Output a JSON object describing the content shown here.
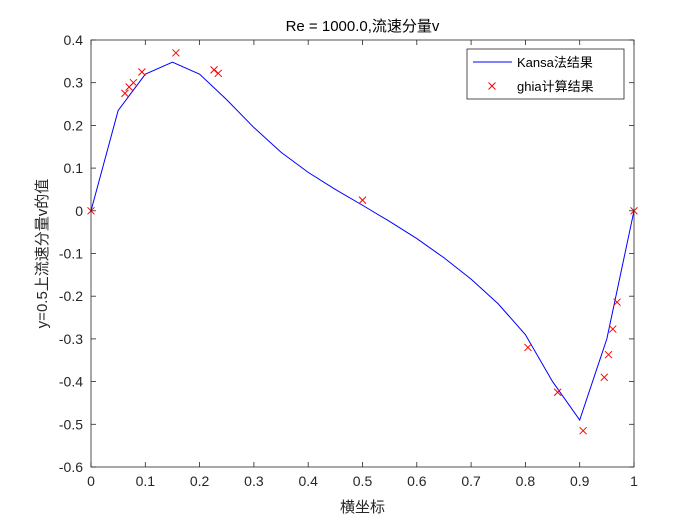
{
  "chart_data": {
    "type": "line",
    "title": "Re = 1000.0,流速分量v",
    "xlabel": "横坐标",
    "ylabel": "y=0.5上流速分量v的值",
    "xlim": [
      0,
      1
    ],
    "ylim": [
      -0.6,
      0.4
    ],
    "xticks": [
      0,
      0.1,
      0.2,
      0.3,
      0.4,
      0.5,
      0.6,
      0.7,
      0.8,
      0.9,
      1
    ],
    "yticks": [
      -0.6,
      -0.5,
      -0.4,
      -0.3,
      -0.2,
      -0.1,
      0,
      0.1,
      0.2,
      0.3,
      0.4
    ],
    "xtick_labels": [
      "0",
      "0.1",
      "0.2",
      "0.3",
      "0.4",
      "0.5",
      "0.6",
      "0.7",
      "0.8",
      "0.9",
      "1"
    ],
    "ytick_labels": [
      "-0.6",
      "-0.5",
      "-0.4",
      "-0.3",
      "-0.2",
      "-0.1",
      "0",
      "0.1",
      "0.2",
      "0.3",
      "0.4"
    ],
    "grid": false,
    "legend_position": "top-right",
    "series": [
      {
        "name": "Kansa法结果",
        "style": "line",
        "color": "#0000ff",
        "x": [
          0,
          0.05,
          0.1,
          0.15,
          0.2,
          0.25,
          0.3,
          0.35,
          0.4,
          0.45,
          0.5,
          0.55,
          0.6,
          0.65,
          0.7,
          0.75,
          0.8,
          0.85,
          0.9,
          0.95,
          1
        ],
        "y": [
          0,
          0.235,
          0.32,
          0.348,
          0.32,
          0.26,
          0.195,
          0.137,
          0.09,
          0.05,
          0.013,
          -0.025,
          -0.065,
          -0.11,
          -0.16,
          -0.218,
          -0.29,
          -0.4,
          -0.49,
          -0.3,
          0
        ]
      },
      {
        "name": "ghia计算结果",
        "style": "marker-x",
        "color": "#ff0000",
        "x": [
          0,
          0.0625,
          0.0703,
          0.0781,
          0.0938,
          0.1563,
          0.2266,
          0.2344,
          0.5,
          0.8047,
          0.8594,
          0.9063,
          0.9453,
          0.9531,
          0.9609,
          0.9688,
          1
        ],
        "y": [
          0,
          0.275,
          0.29,
          0.3,
          0.325,
          0.37,
          0.33,
          0.322,
          0.025,
          -0.32,
          -0.425,
          -0.515,
          -0.39,
          -0.337,
          -0.277,
          -0.214,
          0
        ]
      }
    ]
  }
}
